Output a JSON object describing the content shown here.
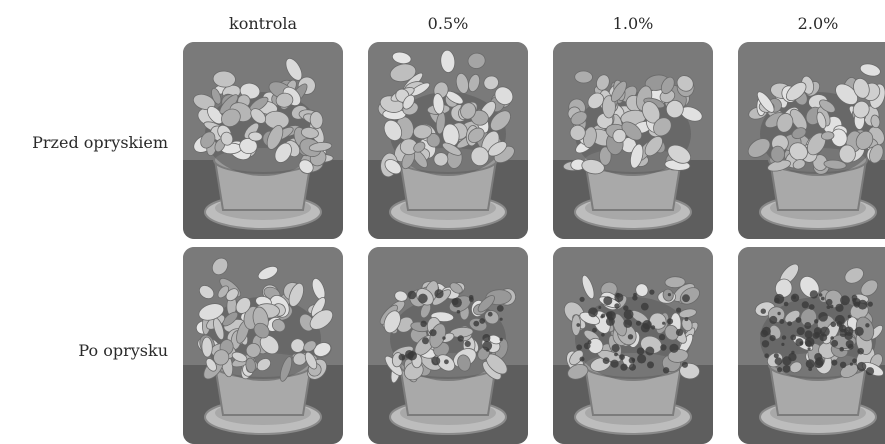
{
  "columns": [
    "kontrola",
    "0.5%",
    "1.0%",
    "2.0%"
  ],
  "rows": [
    "Przed opryskiem",
    "Po oprysku"
  ],
  "photos": [
    {
      "row": 0,
      "col": 0,
      "subject": "potted-plant",
      "condition": "healthy"
    },
    {
      "row": 0,
      "col": 1,
      "subject": "potted-plant",
      "condition": "healthy"
    },
    {
      "row": 0,
      "col": 2,
      "subject": "potted-plant",
      "condition": "healthy"
    },
    {
      "row": 0,
      "col": 3,
      "subject": "potted-plant",
      "condition": "healthy"
    },
    {
      "row": 1,
      "col": 0,
      "subject": "potted-plant",
      "condition": "healthy"
    },
    {
      "row": 1,
      "col": 1,
      "subject": "potted-plant",
      "condition": "slightly-damaged"
    },
    {
      "row": 1,
      "col": 2,
      "subject": "potted-plant",
      "condition": "damaged"
    },
    {
      "row": 1,
      "col": 3,
      "subject": "potted-plant",
      "condition": "heavily-damaged"
    }
  ],
  "colors": {
    "background": "#ffffff",
    "text": "#2a2a2a"
  }
}
